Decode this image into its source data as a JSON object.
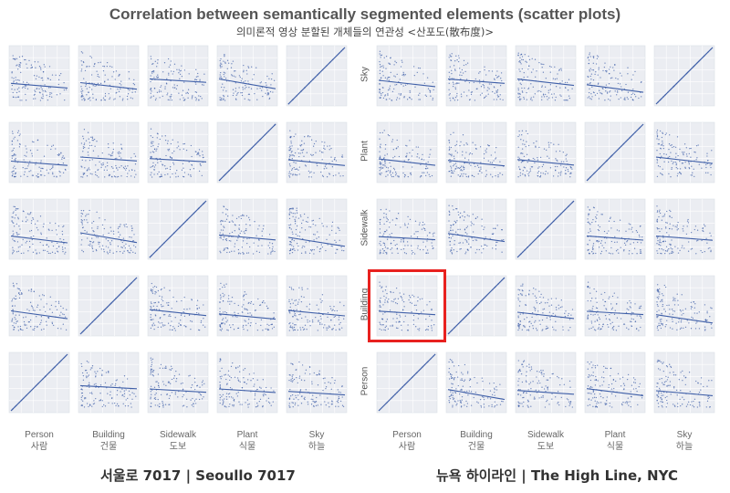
{
  "header": {
    "title": "Correlation between semantically segmented elements (scatter plots)",
    "subtitle": "의미론적 영상 분할된 개체들의 연관성 <산포도(散布度)>"
  },
  "variables": [
    {
      "en": "Person",
      "ko": "사람"
    },
    {
      "en": "Building",
      "ko": "건물"
    },
    {
      "en": "Sidewalk",
      "ko": "도보"
    },
    {
      "en": "Plant",
      "ko": "식물"
    },
    {
      "en": "Sky",
      "ko": "하늘"
    }
  ],
  "row_labels_right": [
    "Sky",
    "Plant",
    "Sidewalk",
    "Building",
    "Person"
  ],
  "footer": {
    "left": "서울로 7017   |   Seoullo 7017",
    "right": "뉴욕 하이라인   |   The High Line, NYC"
  },
  "highlight": {
    "panel": "High Line NYC",
    "row": "Building",
    "column": "Person",
    "color": "#e8211f"
  },
  "chart_data": [
    {
      "type": "scatter",
      "name": "Seoullo 7017",
      "matrix": "scatter-matrix",
      "rows": [
        "Sky",
        "Plant",
        "Sidewalk",
        "Building",
        "Person"
      ],
      "columns": [
        "Person",
        "Building",
        "Sidewalk",
        "Plant",
        "Sky"
      ],
      "diagonal": "identity line",
      "trend": "linear regression per cell, mostly negative slope",
      "grid": true,
      "marker_color": "#3f5fa8"
    },
    {
      "type": "scatter",
      "name": "The High Line, NYC",
      "matrix": "scatter-matrix",
      "rows": [
        "Sky",
        "Plant",
        "Sidewalk",
        "Building",
        "Person"
      ],
      "columns": [
        "Person",
        "Building",
        "Sidewalk",
        "Plant",
        "Sky"
      ],
      "diagonal": "identity line",
      "trend": "linear regression per cell, mostly negative slope",
      "grid": true,
      "marker_color": "#3f5fa8"
    }
  ]
}
